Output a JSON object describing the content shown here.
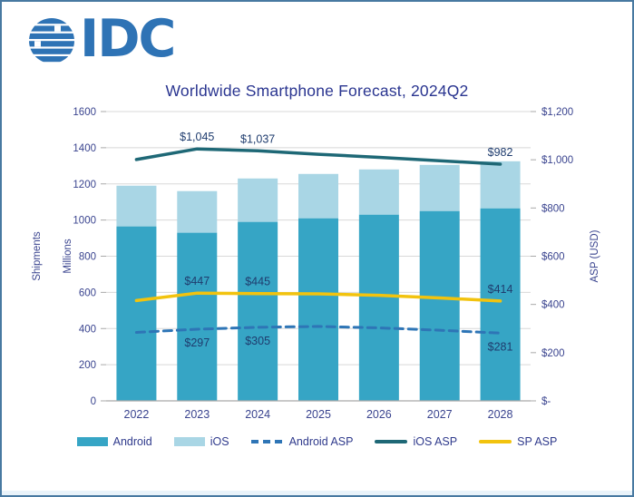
{
  "logo": {
    "text": "IDC",
    "color": "#2E73B5"
  },
  "window": {
    "border_color": "#4879A1"
  },
  "chart_data": {
    "type": "combo-stacked-bar-line",
    "title": "Worldwide Smartphone Forecast, 2024Q2",
    "categories": [
      "2022",
      "2023",
      "2024",
      "2025",
      "2026",
      "2027",
      "2028"
    ],
    "left_axis": {
      "titles": [
        "Shipments",
        "Millions"
      ],
      "min": 0,
      "max": 1600,
      "step": 200,
      "tick_labels": [
        "0",
        "200",
        "400",
        "600",
        "800",
        "1000",
        "1200",
        "1400",
        "1600"
      ]
    },
    "right_axis": {
      "title": "ASP (USD)",
      "min": 0,
      "max": 1200,
      "step": 200,
      "tick_labels": [
        "$-",
        "$200",
        "$400",
        "$600",
        "$800",
        "$1,000",
        "$1,200"
      ]
    },
    "bar_series": [
      {
        "name": "Android",
        "color": "#36A5C5",
        "values": [
          965,
          930,
          990,
          1010,
          1030,
          1050,
          1065
        ]
      },
      {
        "name": "iOS",
        "color": "#A9D6E5",
        "values": [
          225,
          230,
          240,
          245,
          250,
          255,
          260
        ]
      }
    ],
    "line_series": [
      {
        "name": "Android ASP",
        "color": "#2E75B6",
        "style": "dashed",
        "label_side": "below",
        "values": [
          284,
          297,
          305,
          309,
          303,
          293,
          281
        ],
        "labels": [
          null,
          "$297",
          "$305",
          null,
          null,
          null,
          "$281"
        ]
      },
      {
        "name": "iOS ASP",
        "color": "#1E6876",
        "style": "solid",
        "label_side": "above",
        "values": [
          1001,
          1045,
          1037,
          1023,
          1010,
          996,
          982
        ],
        "labels": [
          null,
          "$1,045",
          "$1,037",
          null,
          null,
          null,
          "$982"
        ]
      },
      {
        "name": "SP ASP",
        "color": "#F2C30E",
        "style": "solid",
        "label_side": "above",
        "values": [
          416,
          447,
          445,
          444,
          438,
          427,
          414
        ],
        "labels": [
          null,
          "$447",
          "$445",
          null,
          null,
          null,
          "$414"
        ]
      }
    ],
    "legend": [
      {
        "label": "Android",
        "swatch": "rect",
        "color": "#36A5C5"
      },
      {
        "label": "iOS",
        "swatch": "rect",
        "color": "#A9D6E5"
      },
      {
        "label": "Android ASP",
        "swatch": "dash",
        "color": "#2E75B6"
      },
      {
        "label": "iOS ASP",
        "swatch": "line",
        "color": "#1E6876"
      },
      {
        "label": "SP ASP",
        "swatch": "line",
        "color": "#F2C30E"
      }
    ],
    "grid_color": "#D8D8D8",
    "axis_line_color": "#A9A9A9",
    "tick_text_color": "#3A448F",
    "data_label_color": "#1F3C6E",
    "title_color": "#2A3590"
  }
}
